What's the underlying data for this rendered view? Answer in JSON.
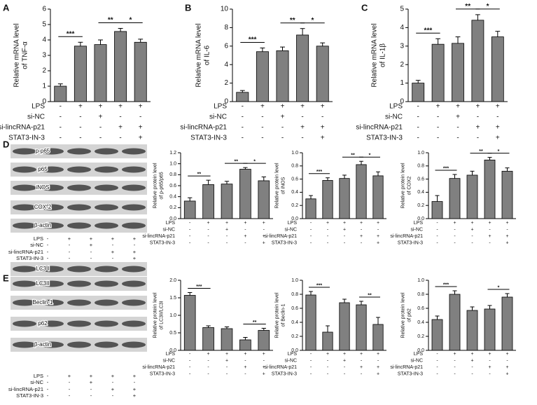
{
  "panels": [
    "A",
    "B",
    "C",
    "D",
    "E"
  ],
  "blots": [
    {
      "proteins": [
        "p-p65",
        "p65",
        "iNOS",
        "COX-2",
        "β-actin"
      ],
      "conditions": [
        {
          "label": "LPS",
          "marks": [
            "-",
            "+",
            "+",
            "+",
            "+"
          ]
        },
        {
          "label": "si-NC",
          "marks": [
            "-",
            "-",
            "+",
            "-",
            "-"
          ]
        },
        {
          "label": "si-lincRNA-p21",
          "marks": [
            "-",
            "-",
            "-",
            "+",
            "+"
          ]
        },
        {
          "label": "STAT3-IN-3",
          "marks": [
            "-",
            "-",
            "-",
            "-",
            "+"
          ]
        }
      ]
    },
    {
      "proteins": [
        "LC3 I",
        "LC3II",
        "Beclin-1",
        "p62",
        "β-actin"
      ],
      "conditions": [
        {
          "label": "LPS",
          "marks": [
            "-",
            "+",
            "+",
            "+",
            "+"
          ]
        },
        {
          "label": "si-NC",
          "marks": [
            "-",
            "-",
            "+",
            "-",
            "-"
          ]
        },
        {
          "label": "si-lincRNA-p21",
          "marks": [
            "-",
            "-",
            "-",
            "+",
            "+"
          ]
        },
        {
          "label": "STAT3-IN-3",
          "marks": [
            "-",
            "-",
            "-",
            "-",
            "+"
          ]
        }
      ]
    }
  ],
  "chart_data": [
    {
      "type": "bar",
      "ylabel": [
        "Relative mRNA level",
        "of TNF-α"
      ],
      "ylim": [
        0,
        6
      ],
      "yticks": [
        0,
        1,
        2,
        3,
        4,
        5,
        6
      ],
      "color": "#808080",
      "values": [
        1.0,
        3.6,
        3.7,
        4.55,
        3.85
      ],
      "errors": [
        0.15,
        0.25,
        0.3,
        0.2,
        0.2
      ],
      "annotations": [
        {
          "text": "***",
          "between": [
            0,
            1
          ]
        },
        {
          "text": "**",
          "between": [
            2,
            3
          ]
        },
        {
          "text": "*",
          "between": [
            3,
            4
          ]
        }
      ],
      "conditions": [
        {
          "label": "LPS",
          "marks": [
            "-",
            "+",
            "+",
            "+",
            "+"
          ]
        },
        {
          "label": "si-NC",
          "marks": [
            "-",
            "-",
            "+",
            "-",
            "-"
          ]
        },
        {
          "label": "si-lincRNA-p21",
          "marks": [
            "-",
            "-",
            "-",
            "+",
            "+"
          ]
        },
        {
          "label": "STAT3-IN-3",
          "marks": [
            "-",
            "-",
            "-",
            "-",
            "+"
          ]
        }
      ]
    },
    {
      "type": "bar",
      "ylabel": [
        "Relative mRNA level",
        "of IL-6"
      ],
      "ylim": [
        0,
        10
      ],
      "yticks": [
        0,
        2,
        4,
        6,
        8,
        10
      ],
      "color": "#808080",
      "values": [
        1.0,
        5.4,
        5.5,
        7.2,
        6.0
      ],
      "errors": [
        0.2,
        0.4,
        0.4,
        0.7,
        0.35
      ],
      "annotations": [
        {
          "text": "***",
          "between": [
            0,
            1
          ]
        },
        {
          "text": "**",
          "between": [
            2,
            3
          ]
        },
        {
          "text": "*",
          "between": [
            3,
            4
          ]
        }
      ],
      "conditions": [
        {
          "label": "LPS",
          "marks": [
            "-",
            "+",
            "+",
            "+",
            "+"
          ]
        },
        {
          "label": "si-NC",
          "marks": [
            "-",
            "-",
            "+",
            "-",
            "-"
          ]
        },
        {
          "label": "si-lincRNA-p21",
          "marks": [
            "-",
            "-",
            "-",
            "+",
            "+"
          ]
        },
        {
          "label": "STAT3-IN-3",
          "marks": [
            "-",
            "-",
            "-",
            "-",
            "+"
          ]
        }
      ]
    },
    {
      "type": "bar",
      "ylabel": [
        "Relative mRNA level",
        "of IL-1β"
      ],
      "ylim": [
        0,
        5
      ],
      "yticks": [
        0,
        1,
        2,
        3,
        4,
        5
      ],
      "color": "#808080",
      "values": [
        1.0,
        3.1,
        3.15,
        4.4,
        3.5
      ],
      "errors": [
        0.15,
        0.3,
        0.35,
        0.3,
        0.3
      ],
      "annotations": [
        {
          "text": "***",
          "between": [
            0,
            1
          ]
        },
        {
          "text": "**",
          "between": [
            2,
            3
          ]
        },
        {
          "text": "*",
          "between": [
            3,
            4
          ]
        }
      ],
      "conditions": [
        {
          "label": "LPS",
          "marks": [
            "-",
            "+",
            "+",
            "+",
            "+"
          ]
        },
        {
          "label": "si-NC",
          "marks": [
            "-",
            "-",
            "+",
            "-",
            "-"
          ]
        },
        {
          "label": "si-lincRNA-p21",
          "marks": [
            "-",
            "-",
            "-",
            "+",
            "+"
          ]
        },
        {
          "label": "STAT3-IN-3",
          "marks": [
            "-",
            "-",
            "-",
            "-",
            "+"
          ]
        }
      ]
    },
    {
      "type": "bar",
      "ylabel": [
        "Relative protein level",
        "of p-p65/p65"
      ],
      "ylim": [
        0,
        1.2
      ],
      "yticks": [
        {
          "value": 0,
          "label": "0.0"
        },
        0.2,
        0.4,
        0.6,
        0.8,
        {
          "value": 1,
          "label": "1.0"
        },
        1.2
      ],
      "color": "#808080",
      "values": [
        0.32,
        0.62,
        0.63,
        0.9,
        0.69
      ],
      "errors": [
        0.06,
        0.08,
        0.05,
        0.03,
        0.07
      ],
      "annotations": [
        {
          "text": "**",
          "between": [
            0,
            1
          ]
        },
        {
          "text": "**",
          "between": [
            2,
            3
          ]
        },
        {
          "text": "*",
          "between": [
            3,
            4
          ]
        }
      ],
      "conditions": [
        {
          "label": "LPS",
          "marks": [
            "-",
            "+",
            "+",
            "+",
            "+"
          ]
        },
        {
          "label": "si-NC",
          "marks": [
            "-",
            "-",
            "+",
            "-",
            "-"
          ]
        },
        {
          "label": "si-lincRNA-p21",
          "marks": [
            "-",
            "-",
            "-",
            "+",
            "+"
          ]
        },
        {
          "label": "STAT3-IN-3",
          "marks": [
            "-",
            "-",
            "-",
            "-",
            "+"
          ]
        }
      ]
    },
    {
      "type": "bar",
      "ylabel": [
        "Relative protein level",
        "of iNOS"
      ],
      "ylim": [
        0,
        1
      ],
      "yticks": [
        {
          "value": 0,
          "label": "0.0"
        },
        0.2,
        0.4,
        0.6,
        0.8,
        {
          "value": 1,
          "label": "1.0"
        }
      ],
      "color": "#808080",
      "values": [
        0.3,
        0.58,
        0.61,
        0.82,
        0.65
      ],
      "errors": [
        0.05,
        0.04,
        0.05,
        0.05,
        0.06
      ],
      "annotations": [
        {
          "text": "***",
          "between": [
            0,
            1
          ]
        },
        {
          "text": "**",
          "between": [
            2,
            3
          ]
        },
        {
          "text": "*",
          "between": [
            3,
            4
          ]
        }
      ],
      "conditions": [
        {
          "label": "LPS",
          "marks": [
            "-",
            "+",
            "+",
            "+",
            "+"
          ]
        },
        {
          "label": "si-NC",
          "marks": [
            "-",
            "-",
            "+",
            "-",
            "-"
          ]
        },
        {
          "label": "si-lincRNA-p21",
          "marks": [
            "-",
            "-",
            "-",
            "+",
            "+"
          ]
        },
        {
          "label": "STAT3-IN-3",
          "marks": [
            "-",
            "-",
            "-",
            "-",
            "+"
          ]
        }
      ]
    },
    {
      "type": "bar",
      "ylabel": [
        "Relative protein level",
        "of COX2"
      ],
      "ylim": [
        0,
        1
      ],
      "yticks": [
        {
          "value": 0,
          "label": "0.0"
        },
        0.2,
        0.4,
        0.6,
        0.8,
        {
          "value": 1,
          "label": "1.0"
        }
      ],
      "color": "#808080",
      "values": [
        0.26,
        0.61,
        0.66,
        0.89,
        0.72
      ],
      "errors": [
        0.09,
        0.06,
        0.06,
        0.04,
        0.05
      ],
      "annotations": [
        {
          "text": "***",
          "between": [
            0,
            1
          ]
        },
        {
          "text": "**",
          "between": [
            2,
            3
          ]
        },
        {
          "text": "*",
          "between": [
            3,
            4
          ]
        }
      ],
      "conditions": [
        {
          "label": "LPS",
          "marks": [
            "-",
            "+",
            "+",
            "+",
            "+"
          ]
        },
        {
          "label": "si-NC",
          "marks": [
            "-",
            "-",
            "+",
            "-",
            "-"
          ]
        },
        {
          "label": "si-lincRNA-p21",
          "marks": [
            "-",
            "-",
            "-",
            "+",
            "+"
          ]
        },
        {
          "label": "STAT3-IN-3",
          "marks": [
            "-",
            "-",
            "-",
            "-",
            "+"
          ]
        }
      ]
    },
    {
      "type": "bar",
      "ylabel": [
        "Relative protein level",
        "of LC3II/LC3I"
      ],
      "ylim": [
        0,
        2
      ],
      "yticks": [
        {
          "value": 0,
          "label": "0.0"
        },
        0.5,
        {
          "value": 1,
          "label": "1.0"
        },
        1.5,
        {
          "value": 2,
          "label": "2.0"
        }
      ],
      "color": "#808080",
      "values": [
        1.57,
        0.65,
        0.62,
        0.3,
        0.57
      ],
      "errors": [
        0.08,
        0.05,
        0.05,
        0.07,
        0.06
      ],
      "annotations": [
        {
          "text": "***",
          "between": [
            0,
            1
          ]
        },
        {
          "text": "**",
          "between": [
            3,
            4
          ]
        }
      ],
      "conditions": [
        {
          "label": "LPS",
          "marks": [
            "-",
            "+",
            "+",
            "+",
            "+"
          ]
        },
        {
          "label": "si-NC",
          "marks": [
            "-",
            "-",
            "+",
            "-",
            "-"
          ]
        },
        {
          "label": "si-lincRNA-p21",
          "marks": [
            "-",
            "-",
            "-",
            "+",
            "+"
          ]
        },
        {
          "label": "STAT3-IN-3",
          "marks": [
            "-",
            "-",
            "-",
            "-",
            "+"
          ]
        }
      ]
    },
    {
      "type": "bar",
      "ylabel": [
        "Relative protein level",
        "of Beclin-1"
      ],
      "ylim": [
        0,
        1
      ],
      "yticks": [
        {
          "value": 0,
          "label": "0.0"
        },
        0.2,
        0.4,
        0.6,
        0.8,
        {
          "value": 1,
          "label": "1.0"
        }
      ],
      "color": "#808080",
      "values": [
        0.79,
        0.26,
        0.68,
        0.65,
        0.37
      ],
      "errors": [
        0.05,
        0.09,
        0.05,
        0.05,
        0.1
      ],
      "annotations": [
        {
          "text": "***",
          "between": [
            0,
            1
          ]
        },
        {
          "text": "**",
          "between": [
            3,
            4
          ]
        }
      ],
      "conditions": [
        {
          "label": "LPS",
          "marks": [
            "-",
            "+",
            "+",
            "+",
            "+"
          ]
        },
        {
          "label": "si-NC",
          "marks": [
            "-",
            "-",
            "+",
            "-",
            "-"
          ]
        },
        {
          "label": "si-lincRNA-p21",
          "marks": [
            "-",
            "-",
            "-",
            "+",
            "+"
          ]
        },
        {
          "label": "STAT3-IN-3",
          "marks": [
            "-",
            "-",
            "-",
            "-",
            "+"
          ]
        }
      ]
    },
    {
      "type": "bar",
      "ylabel": [
        "Relative protein level",
        "of p62"
      ],
      "ylim": [
        0,
        1
      ],
      "yticks": [
        {
          "value": 0,
          "label": "0.0"
        },
        0.2,
        0.4,
        0.6,
        0.8,
        {
          "value": 1,
          "label": "1.0"
        }
      ],
      "color": "#808080",
      "values": [
        0.44,
        0.8,
        0.57,
        0.59,
        0.76
      ],
      "errors": [
        0.05,
        0.05,
        0.05,
        0.05,
        0.05
      ],
      "annotations": [
        {
          "text": "***",
          "between": [
            0,
            1
          ]
        },
        {
          "text": "*",
          "between": [
            3,
            4
          ]
        }
      ],
      "conditions": [
        {
          "label": "LPS",
          "marks": [
            "-",
            "+",
            "+",
            "+",
            "+"
          ]
        },
        {
          "label": "si-NC",
          "marks": [
            "-",
            "-",
            "+",
            "-",
            "-"
          ]
        },
        {
          "label": "si-lincRNA-p21",
          "marks": [
            "-",
            "-",
            "-",
            "+",
            "+"
          ]
        },
        {
          "label": "STAT3-IN-3",
          "marks": [
            "-",
            "-",
            "-",
            "-",
            "+"
          ]
        }
      ]
    }
  ]
}
